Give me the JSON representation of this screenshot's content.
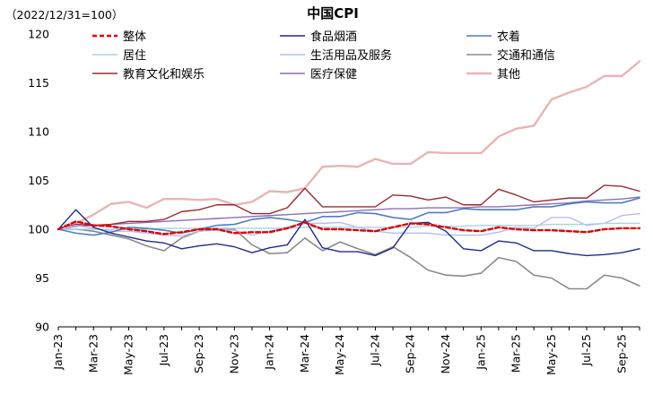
{
  "chart_data": {
    "type": "line",
    "title": "中国CPI",
    "note": "（2022/12/31=100）",
    "xlabel": "",
    "ylabel": "",
    "ylim": [
      90,
      120
    ],
    "yticks": [
      90,
      95,
      100,
      105,
      110,
      115,
      120
    ],
    "x": [
      "Jan-23",
      "Feb-23",
      "Mar-23",
      "Apr-23",
      "May-23",
      "Jun-23",
      "Jul-23",
      "Aug-23",
      "Sep-23",
      "Oct-23",
      "Nov-23",
      "Dec-23",
      "Jan-24",
      "Feb-24",
      "Mar-24",
      "Apr-24",
      "May-24",
      "Jun-24",
      "Jul-24",
      "Aug-24",
      "Sep-24",
      "Oct-24",
      "Nov-24",
      "Dec-24",
      "Jan-25",
      "Feb-25",
      "Mar-25",
      "Apr-25",
      "May-25",
      "Jun-25",
      "Jul-25",
      "Aug-25",
      "Sep-25",
      "Oct-25"
    ],
    "xticks": [
      "Jan-23",
      "Mar-23",
      "May-23",
      "Jul-23",
      "Sep-23",
      "Nov-23",
      "Jan-24",
      "Mar-24",
      "May-24",
      "Jul-24",
      "Sep-24",
      "Nov-24",
      "Jan-25",
      "Mar-25",
      "May-25",
      "Jul-25",
      "Sep-25"
    ],
    "legend_position": "top",
    "series": [
      {
        "name": "整体",
        "color": "#e00000",
        "dash": "5,3",
        "width": 2.4,
        "values": [
          100.0,
          100.8,
          100.4,
          100.3,
          100.0,
          99.8,
          99.5,
          99.7,
          100.0,
          100.0,
          99.6,
          99.7,
          99.7,
          100.1,
          100.7,
          100.0,
          100.0,
          99.9,
          99.8,
          100.2,
          100.6,
          100.5,
          100.2,
          99.9,
          99.8,
          100.2,
          100.0,
          99.9,
          99.9,
          99.8,
          99.7,
          100.0,
          100.1,
          100.1
        ]
      },
      {
        "name": "食品烟酒",
        "color": "#1f2a8c",
        "dash": "",
        "width": 1.4,
        "values": [
          100.0,
          102.0,
          100.2,
          99.6,
          99.2,
          98.8,
          98.6,
          98.0,
          98.3,
          98.5,
          98.2,
          97.6,
          98.1,
          98.4,
          101.0,
          98.1,
          97.7,
          97.7,
          97.3,
          98.1,
          100.6,
          100.7,
          99.8,
          98.0,
          97.8,
          98.8,
          98.6,
          97.8,
          97.8,
          97.5,
          97.3,
          97.4,
          97.6,
          98.0
        ]
      },
      {
        "name": "衣着",
        "color": "#4f7fbf",
        "dash": "",
        "width": 1.6,
        "values": [
          100.0,
          99.6,
          99.4,
          99.7,
          100.2,
          100.1,
          99.9,
          99.6,
          100.0,
          100.4,
          100.5,
          101.0,
          101.2,
          101.0,
          100.7,
          101.3,
          101.3,
          101.7,
          101.6,
          101.2,
          101.0,
          101.7,
          101.7,
          102.1,
          102.0,
          102.0,
          102.0,
          102.3,
          102.3,
          102.6,
          102.8,
          102.7,
          102.7,
          103.2
        ]
      },
      {
        "name": "居住",
        "color": "#a8d4e0",
        "dash": "",
        "width": 1.4,
        "values": [
          100.0,
          100.0,
          100.0,
          100.0,
          100.0,
          100.0,
          100.1,
          100.1,
          100.1,
          100.1,
          100.1,
          100.1,
          100.1,
          100.1,
          100.2,
          100.2,
          100.2,
          100.2,
          100.2,
          100.2,
          100.2,
          100.3,
          100.3,
          100.3,
          100.4,
          100.4,
          100.4,
          100.4,
          100.5,
          100.5,
          100.5,
          100.6,
          100.6,
          100.6
        ]
      },
      {
        "name": "生活用品及服务",
        "color": "#b6baf2",
        "dash": "",
        "width": 1.4,
        "values": [
          100.0,
          100.4,
          100.1,
          99.8,
          99.8,
          99.6,
          99.4,
          99.3,
          99.8,
          99.9,
          99.9,
          99.4,
          99.8,
          100.2,
          100.6,
          100.6,
          100.7,
          100.2,
          99.8,
          99.6,
          99.6,
          99.6,
          99.4,
          99.4,
          99.4,
          99.7,
          100.2,
          100.1,
          101.2,
          101.2,
          100.4,
          100.6,
          101.4,
          101.6
        ]
      },
      {
        "name": "交通和通信",
        "color": "#8a8a8a",
        "dash": "",
        "width": 1.6,
        "values": [
          100.0,
          100.0,
          99.8,
          99.4,
          99.0,
          98.3,
          97.8,
          99.1,
          99.8,
          100.1,
          100.0,
          98.4,
          97.5,
          97.6,
          99.1,
          97.8,
          98.7,
          98.0,
          97.4,
          98.2,
          97.1,
          95.8,
          95.3,
          95.2,
          95.5,
          97.1,
          96.7,
          95.3,
          95.0,
          93.9,
          93.9,
          95.3,
          95.0,
          94.2
        ]
      },
      {
        "name": "教育文化和娱乐",
        "color": "#9b2a30",
        "dash": "",
        "width": 1.4,
        "values": [
          100.0,
          100.5,
          100.4,
          100.5,
          100.8,
          100.8,
          101.0,
          101.8,
          102.0,
          102.5,
          102.5,
          101.6,
          101.6,
          102.2,
          104.2,
          102.3,
          102.3,
          102.3,
          102.3,
          103.5,
          103.4,
          103.0,
          103.3,
          102.5,
          102.5,
          104.1,
          103.5,
          102.8,
          103.0,
          103.2,
          103.2,
          104.5,
          104.4,
          103.9
        ]
      },
      {
        "name": "医疗保健",
        "color": "#8d6fb5",
        "dash": "",
        "width": 1.4,
        "values": [
          100.0,
          100.3,
          100.4,
          100.5,
          100.6,
          100.7,
          100.8,
          100.9,
          101.0,
          101.1,
          101.2,
          101.3,
          101.4,
          101.5,
          101.6,
          101.7,
          101.8,
          101.9,
          102.0,
          102.1,
          102.1,
          102.2,
          102.2,
          102.2,
          102.3,
          102.3,
          102.4,
          102.5,
          102.6,
          102.7,
          102.9,
          103.0,
          103.1,
          103.3
        ]
      },
      {
        "name": "其他",
        "color": "#e8b4b4",
        "dash": "",
        "width": 2.4,
        "values": [
          100.0,
          100.6,
          101.5,
          102.6,
          102.8,
          102.2,
          103.1,
          103.1,
          103.0,
          103.1,
          102.5,
          102.8,
          103.9,
          103.8,
          104.2,
          106.4,
          106.5,
          106.4,
          107.2,
          106.7,
          106.7,
          107.9,
          107.8,
          107.8,
          107.8,
          109.5,
          110.3,
          110.6,
          113.3,
          114.0,
          114.6,
          115.7,
          115.7,
          117.2
        ]
      }
    ]
  }
}
